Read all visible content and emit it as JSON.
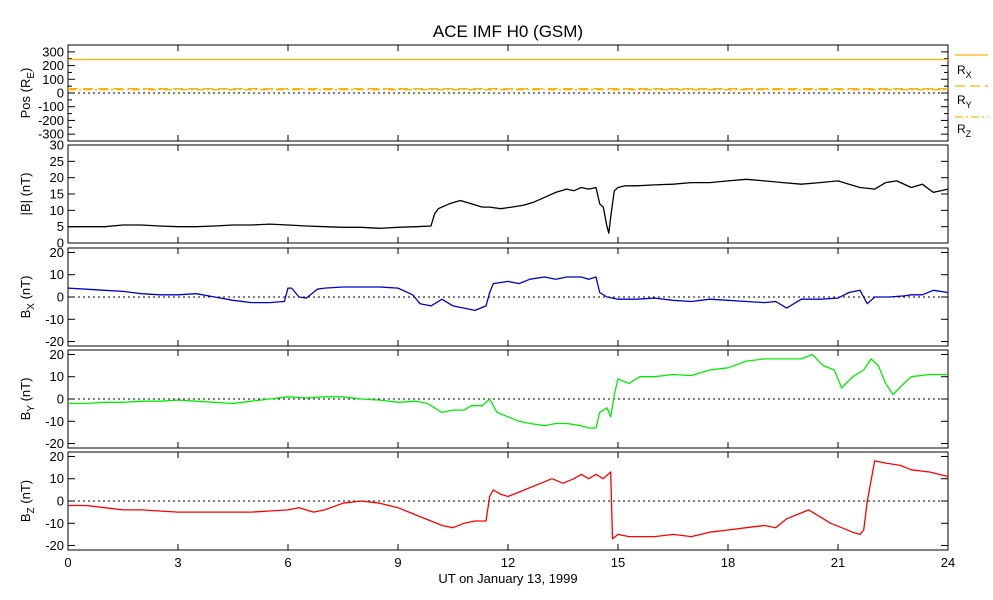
{
  "chart_data": {
    "type": "line",
    "title": "ACE IMF H0 (GSM)",
    "xlabel": "UT on January 13, 1999",
    "xlim": [
      0,
      24
    ],
    "xticks": [
      0,
      3,
      6,
      9,
      12,
      15,
      18,
      21,
      24
    ],
    "xtick_labels": [
      "0",
      "3",
      "6",
      "9",
      "12",
      "15",
      "18",
      "21",
      "24"
    ],
    "panels": [
      {
        "id": "pos",
        "ylabel_main": "Pos (R",
        "ylabel_sub": "E",
        "ylabel_end": ")",
        "ylim": [
          -350,
          350
        ],
        "yticks": [
          300,
          200,
          100,
          0,
          -100,
          -200,
          -300
        ],
        "zero_line": true,
        "series": [
          {
            "name": "R",
            "sub": "X",
            "color": "#ffb000",
            "style": "solid",
            "x": [
              0,
              24
            ],
            "values": [
              244,
              244
            ]
          },
          {
            "name": "R",
            "sub": "Y",
            "color": "#ffb000",
            "style": "dashed",
            "x": [
              0,
              24
            ],
            "values": [
              32,
              31
            ]
          },
          {
            "name": "R",
            "sub": "Z",
            "color": "#ffb000",
            "style": "dashdot",
            "x": [
              0,
              24
            ],
            "values": [
              24,
              24
            ]
          }
        ]
      },
      {
        "id": "bmag",
        "ylabel_main": "|B| (nT)",
        "ylim": [
          0,
          30
        ],
        "yticks": [
          30,
          25,
          20,
          15,
          10,
          5,
          0
        ],
        "zero_line": false,
        "series": [
          {
            "name": "|B|",
            "color": "#000000",
            "x": [
              0,
              0.5,
              1,
              1.5,
              2,
              2.5,
              3,
              3.5,
              4,
              4.5,
              5,
              5.5,
              6,
              6.5,
              7,
              7.5,
              8,
              8.5,
              9,
              9.5,
              9.9,
              10,
              10.1,
              10.4,
              10.7,
              11,
              11.3,
              11.5,
              11.8,
              12.1,
              12.4,
              12.7,
              13,
              13.3,
              13.6,
              13.8,
              14,
              14.2,
              14.4,
              14.5,
              14.6,
              14.7,
              14.75,
              14.8,
              14.9,
              15,
              15.2,
              15.5,
              16,
              16.5,
              17,
              17.5,
              18,
              18.5,
              19,
              19.5,
              20,
              20.5,
              21,
              21.3,
              21.6,
              22,
              22.3,
              22.6,
              23,
              23.3,
              23.6,
              24
            ],
            "values": [
              5,
              5,
              5,
              5.5,
              5.5,
              5.2,
              5,
              5,
              5.2,
              5.5,
              5.5,
              5.8,
              5.5,
              5.2,
              5,
              4.8,
              4.8,
              4.5,
              4.8,
              5,
              5.2,
              9,
              10.5,
              12,
              13,
              12,
              11,
              11,
              10.5,
              11,
              11.5,
              12.5,
              14,
              15.5,
              16.5,
              16,
              17,
              16.5,
              17,
              12,
              11,
              5,
              3,
              8,
              16,
              17,
              17.5,
              17.5,
              17.8,
              18,
              18.5,
              18.5,
              19,
              19.5,
              19,
              18.5,
              18,
              18.5,
              19,
              18,
              17,
              16.5,
              18.5,
              19,
              17,
              18,
              15.5,
              16.5
            ]
          }
        ]
      },
      {
        "id": "bx",
        "ylabel_main": "B",
        "ylabel_sub": "X",
        "ylabel_end": " (nT)",
        "ylim": [
          -22,
          22
        ],
        "yticks": [
          20,
          10,
          0,
          -10,
          -20
        ],
        "zero_line": true,
        "series": [
          {
            "name": "BX",
            "color": "#0000cc",
            "x": [
              0,
              0.5,
              1,
              1.5,
              2,
              2.5,
              3,
              3.5,
              4,
              4.5,
              5,
              5.5,
              5.9,
              6,
              6.1,
              6.3,
              6.5,
              6.8,
              7,
              7.5,
              8,
              8.5,
              9,
              9.4,
              9.6,
              9.9,
              10.2,
              10.5,
              10.8,
              11.1,
              11.4,
              11.5,
              11.6,
              12,
              12.3,
              12.6,
              13,
              13.3,
              13.6,
              14,
              14.2,
              14.4,
              14.5,
              14.7,
              15,
              15.5,
              16,
              16.5,
              17,
              17.5,
              18,
              18.5,
              19,
              19.3,
              19.6,
              20,
              20.5,
              21,
              21.3,
              21.6,
              21.8,
              22,
              22.4,
              22.8,
              23,
              23.3,
              23.6,
              24
            ],
            "values": [
              4,
              3.5,
              3,
              2.5,
              1.5,
              1,
              1,
              1.5,
              0,
              -1.5,
              -2.5,
              -2.5,
              -2,
              4,
              4,
              0,
              -0.5,
              3.5,
              4,
              4.5,
              4.5,
              4.5,
              4,
              1,
              -3,
              -4,
              -1,
              -4,
              -5,
              -6,
              -4,
              2,
              6,
              7,
              6,
              8,
              9,
              8,
              9,
              9,
              8,
              9,
              2,
              0,
              -1,
              -1,
              -0.5,
              -1.5,
              -2,
              -1,
              -1.5,
              -2,
              -2.5,
              -2,
              -5,
              -1,
              -1,
              -0.5,
              2,
              3,
              -3,
              0,
              0,
              0.5,
              1,
              1,
              3,
              2
            ]
          }
        ]
      },
      {
        "id": "by",
        "ylabel_main": "B",
        "ylabel_sub": "Y",
        "ylabel_end": " (nT)",
        "ylim": [
          -22,
          22
        ],
        "yticks": [
          20,
          10,
          0,
          -10,
          -20
        ],
        "zero_line": true,
        "series": [
          {
            "name": "BY",
            "color": "#00ee00",
            "x": [
              0,
              0.5,
              1,
              1.5,
              2,
              2.5,
              3,
              3.5,
              4,
              4.5,
              5,
              5.5,
              6,
              6.5,
              7,
              7.5,
              8,
              8.5,
              9,
              9.5,
              9.8,
              10,
              10.2,
              10.5,
              10.8,
              11,
              11.3,
              11.5,
              11.7,
              12,
              12.3,
              12.6,
              13,
              13.3,
              13.6,
              14,
              14.2,
              14.4,
              14.5,
              14.7,
              14.8,
              14.9,
              15,
              15.3,
              15.6,
              16,
              16.5,
              17,
              17.5,
              18,
              18.5,
              19,
              19.5,
              20,
              20.3,
              20.6,
              20.9,
              21.1,
              21.4,
              21.7,
              21.9,
              22.1,
              22.3,
              22.5,
              22.8,
              23,
              23.5,
              24
            ],
            "values": [
              -2,
              -2,
              -1.5,
              -1.5,
              -1,
              -1,
              -0.5,
              -1,
              -1.5,
              -2,
              -1,
              0,
              1,
              0.5,
              1,
              1,
              0,
              -0.5,
              -1.5,
              -1,
              -2,
              -4,
              -6,
              -5,
              -5,
              -3,
              -3,
              0,
              -6,
              -8,
              -10,
              -11,
              -12,
              -11,
              -11,
              -12,
              -13,
              -13,
              -6,
              -4,
              -8,
              2,
              9,
              7,
              10,
              10,
              11,
              10.5,
              13,
              14,
              17,
              18,
              18,
              18,
              20,
              15,
              13,
              5,
              10,
              13,
              18,
              15,
              7,
              2,
              7,
              10,
              11,
              11
            ]
          }
        ]
      },
      {
        "id": "bz",
        "ylabel_main": "B",
        "ylabel_sub": "Z",
        "ylabel_end": " (nT)",
        "ylim": [
          -22,
          22
        ],
        "yticks": [
          20,
          10,
          0,
          -10,
          -20
        ],
        "zero_line": true,
        "series": [
          {
            "name": "BZ",
            "color": "#ff0000",
            "x": [
              0,
              0.5,
              1,
              1.5,
              2,
              2.5,
              3,
              3.5,
              4,
              4.5,
              5,
              5.5,
              6,
              6.3,
              6.7,
              7,
              7.5,
              8,
              8.5,
              9,
              9.3,
              9.6,
              9.9,
              10.2,
              10.5,
              10.8,
              11.1,
              11.4,
              11.5,
              11.6,
              11.8,
              12,
              12.3,
              12.6,
              12.9,
              13.2,
              13.5,
              13.8,
              14,
              14.2,
              14.4,
              14.6,
              14.8,
              14.85,
              15,
              15.3,
              15.6,
              16,
              16.5,
              17,
              17.5,
              18,
              18.5,
              19,
              19.3,
              19.6,
              19.9,
              20.2,
              20.5,
              20.8,
              21.1,
              21.4,
              21.6,
              21.7,
              21.8,
              22,
              22.3,
              22.7,
              23,
              23.5,
              24
            ],
            "values": [
              -2,
              -2,
              -3,
              -4,
              -4,
              -4.5,
              -5,
              -5,
              -5,
              -5,
              -5,
              -4.5,
              -4,
              -3,
              -5,
              -4,
              -1,
              0,
              -1,
              -3,
              -5,
              -7,
              -9,
              -11,
              -12,
              -10,
              -9,
              -9,
              2,
              5,
              3,
              2,
              4,
              6,
              8,
              10,
              8,
              10,
              12,
              10,
              12,
              10,
              13,
              -17,
              -15,
              -16,
              -16,
              -16,
              -15,
              -16,
              -14,
              -13,
              -12,
              -11,
              -12,
              -8,
              -6,
              -4,
              -7,
              -10,
              -12,
              -14,
              -15,
              -13,
              0,
              18,
              17,
              16,
              14,
              13,
              11
            ]
          }
        ]
      }
    ]
  }
}
